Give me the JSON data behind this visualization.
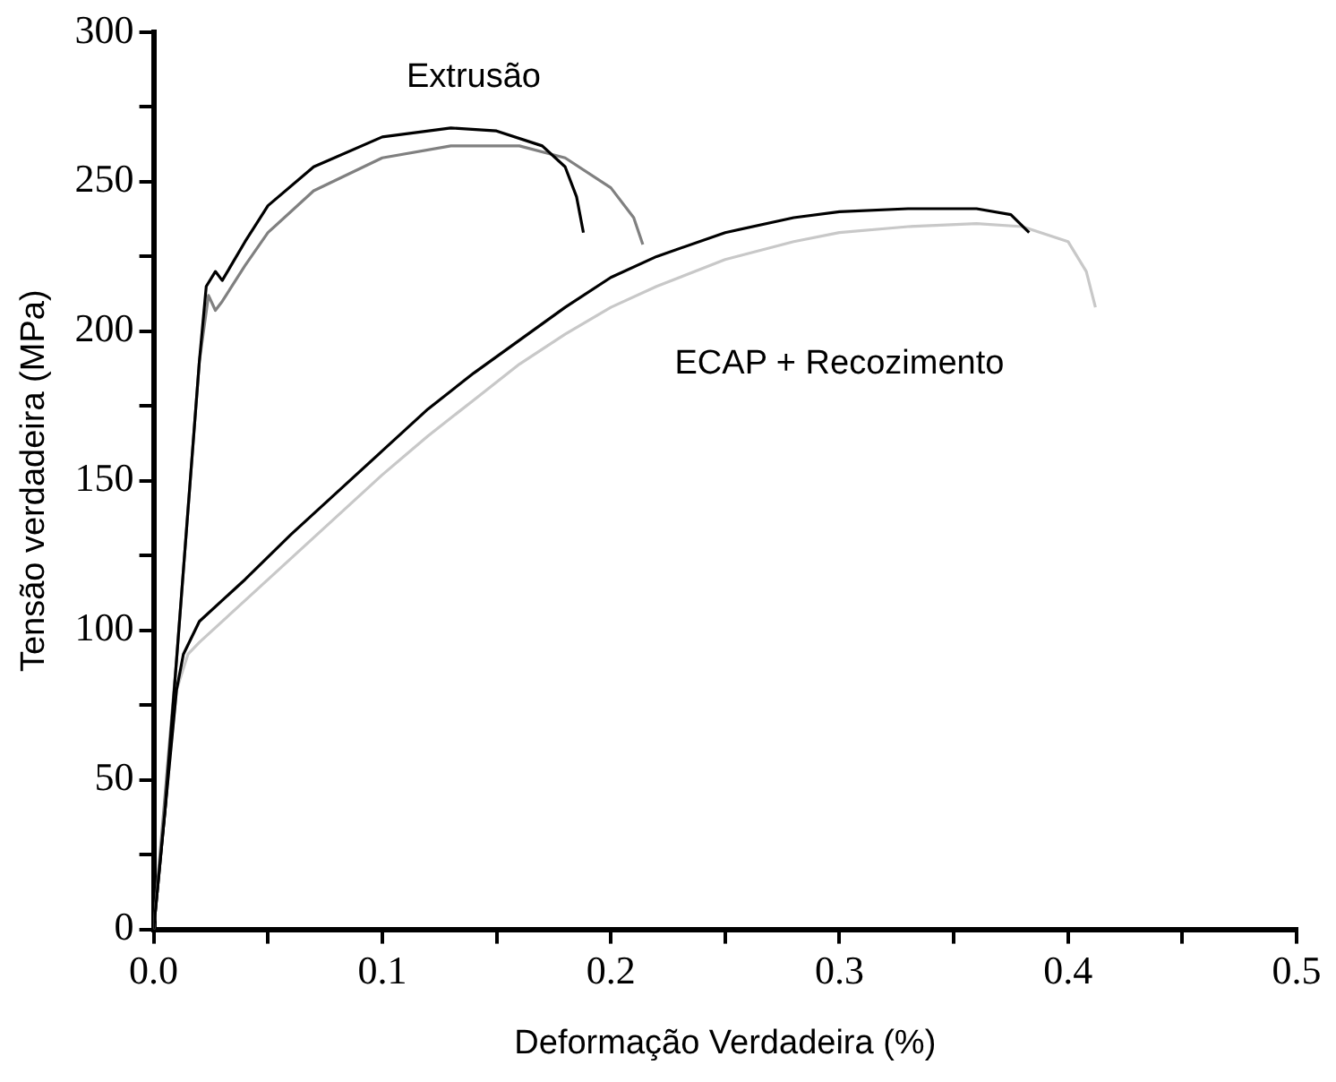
{
  "chart_data": {
    "type": "line",
    "xlabel": "Deformação Verdadeira (%)",
    "ylabel": "Tensão verdadeira (MPa)",
    "xlim": [
      0,
      0.5
    ],
    "xticks": [
      {
        "value": 0,
        "label": "0.0"
      },
      {
        "value": 0.05,
        "label": null
      },
      0.1,
      {
        "value": 0.15,
        "label": null
      },
      0.2,
      {
        "value": 0.25,
        "label": null
      },
      0.3,
      {
        "value": 0.35,
        "label": null
      },
      0.4,
      {
        "value": 0.45,
        "label": null
      },
      0.5
    ],
    "ylim": [
      0,
      300
    ],
    "yticks": [
      0,
      {
        "value": 25,
        "label": null
      },
      50,
      {
        "value": 75,
        "label": null
      },
      100,
      {
        "value": 125,
        "label": null
      },
      150,
      {
        "value": 175,
        "label": null
      },
      200,
      {
        "value": 225,
        "label": null
      },
      250,
      {
        "value": 275,
        "label": null
      },
      300
    ],
    "grid": false,
    "legend": false,
    "marker": "none",
    "line_style": "solid",
    "annotations": [
      "Extrusão",
      "ECAP + Recozimento"
    ],
    "series": [
      {
        "color": "#000000",
        "x": [
          0,
          0.005,
          0.01,
          0.015,
          0.02,
          0.023,
          0.027,
          0.03,
          0.04,
          0.05,
          0.07,
          0.1,
          0.13,
          0.15,
          0.17,
          0.18,
          0.185,
          0.188
        ],
        "values": [
          0,
          40,
          90,
          140,
          190,
          215,
          220,
          217,
          230,
          242,
          255,
          265,
          268,
          267,
          262,
          255,
          245,
          233
        ]
      },
      {
        "color": "#808080",
        "x": [
          0,
          0.01,
          0.02,
          0.024,
          0.027,
          0.03,
          0.04,
          0.05,
          0.07,
          0.1,
          0.13,
          0.16,
          0.18,
          0.2,
          0.21,
          0.214
        ],
        "values": [
          0,
          90,
          190,
          212,
          207,
          210,
          222,
          233,
          247,
          258,
          262,
          262,
          258,
          248,
          238,
          229
        ]
      },
      {
        "color": "#000000",
        "x": [
          0,
          0.005,
          0.01,
          0.013,
          0.02,
          0.04,
          0.06,
          0.08,
          0.1,
          0.12,
          0.14,
          0.16,
          0.18,
          0.2,
          0.22,
          0.25,
          0.28,
          0.3,
          0.33,
          0.36,
          0.375,
          0.383
        ],
        "values": [
          0,
          40,
          80,
          92,
          103,
          117,
          132,
          146,
          160,
          174,
          186,
          197,
          208,
          218,
          225,
          233,
          238,
          240,
          241,
          241,
          239,
          233
        ]
      },
      {
        "color": "#c8c8c8",
        "x": [
          0,
          0.01,
          0.015,
          0.02,
          0.04,
          0.06,
          0.08,
          0.1,
          0.12,
          0.14,
          0.16,
          0.18,
          0.2,
          0.22,
          0.25,
          0.28,
          0.3,
          0.33,
          0.36,
          0.38,
          0.4,
          0.408,
          0.412
        ],
        "values": [
          0,
          80,
          92,
          96,
          110,
          124,
          138,
          152,
          165,
          177,
          189,
          199,
          208,
          215,
          224,
          230,
          233,
          235,
          236,
          235,
          230,
          220,
          208
        ]
      }
    ]
  }
}
